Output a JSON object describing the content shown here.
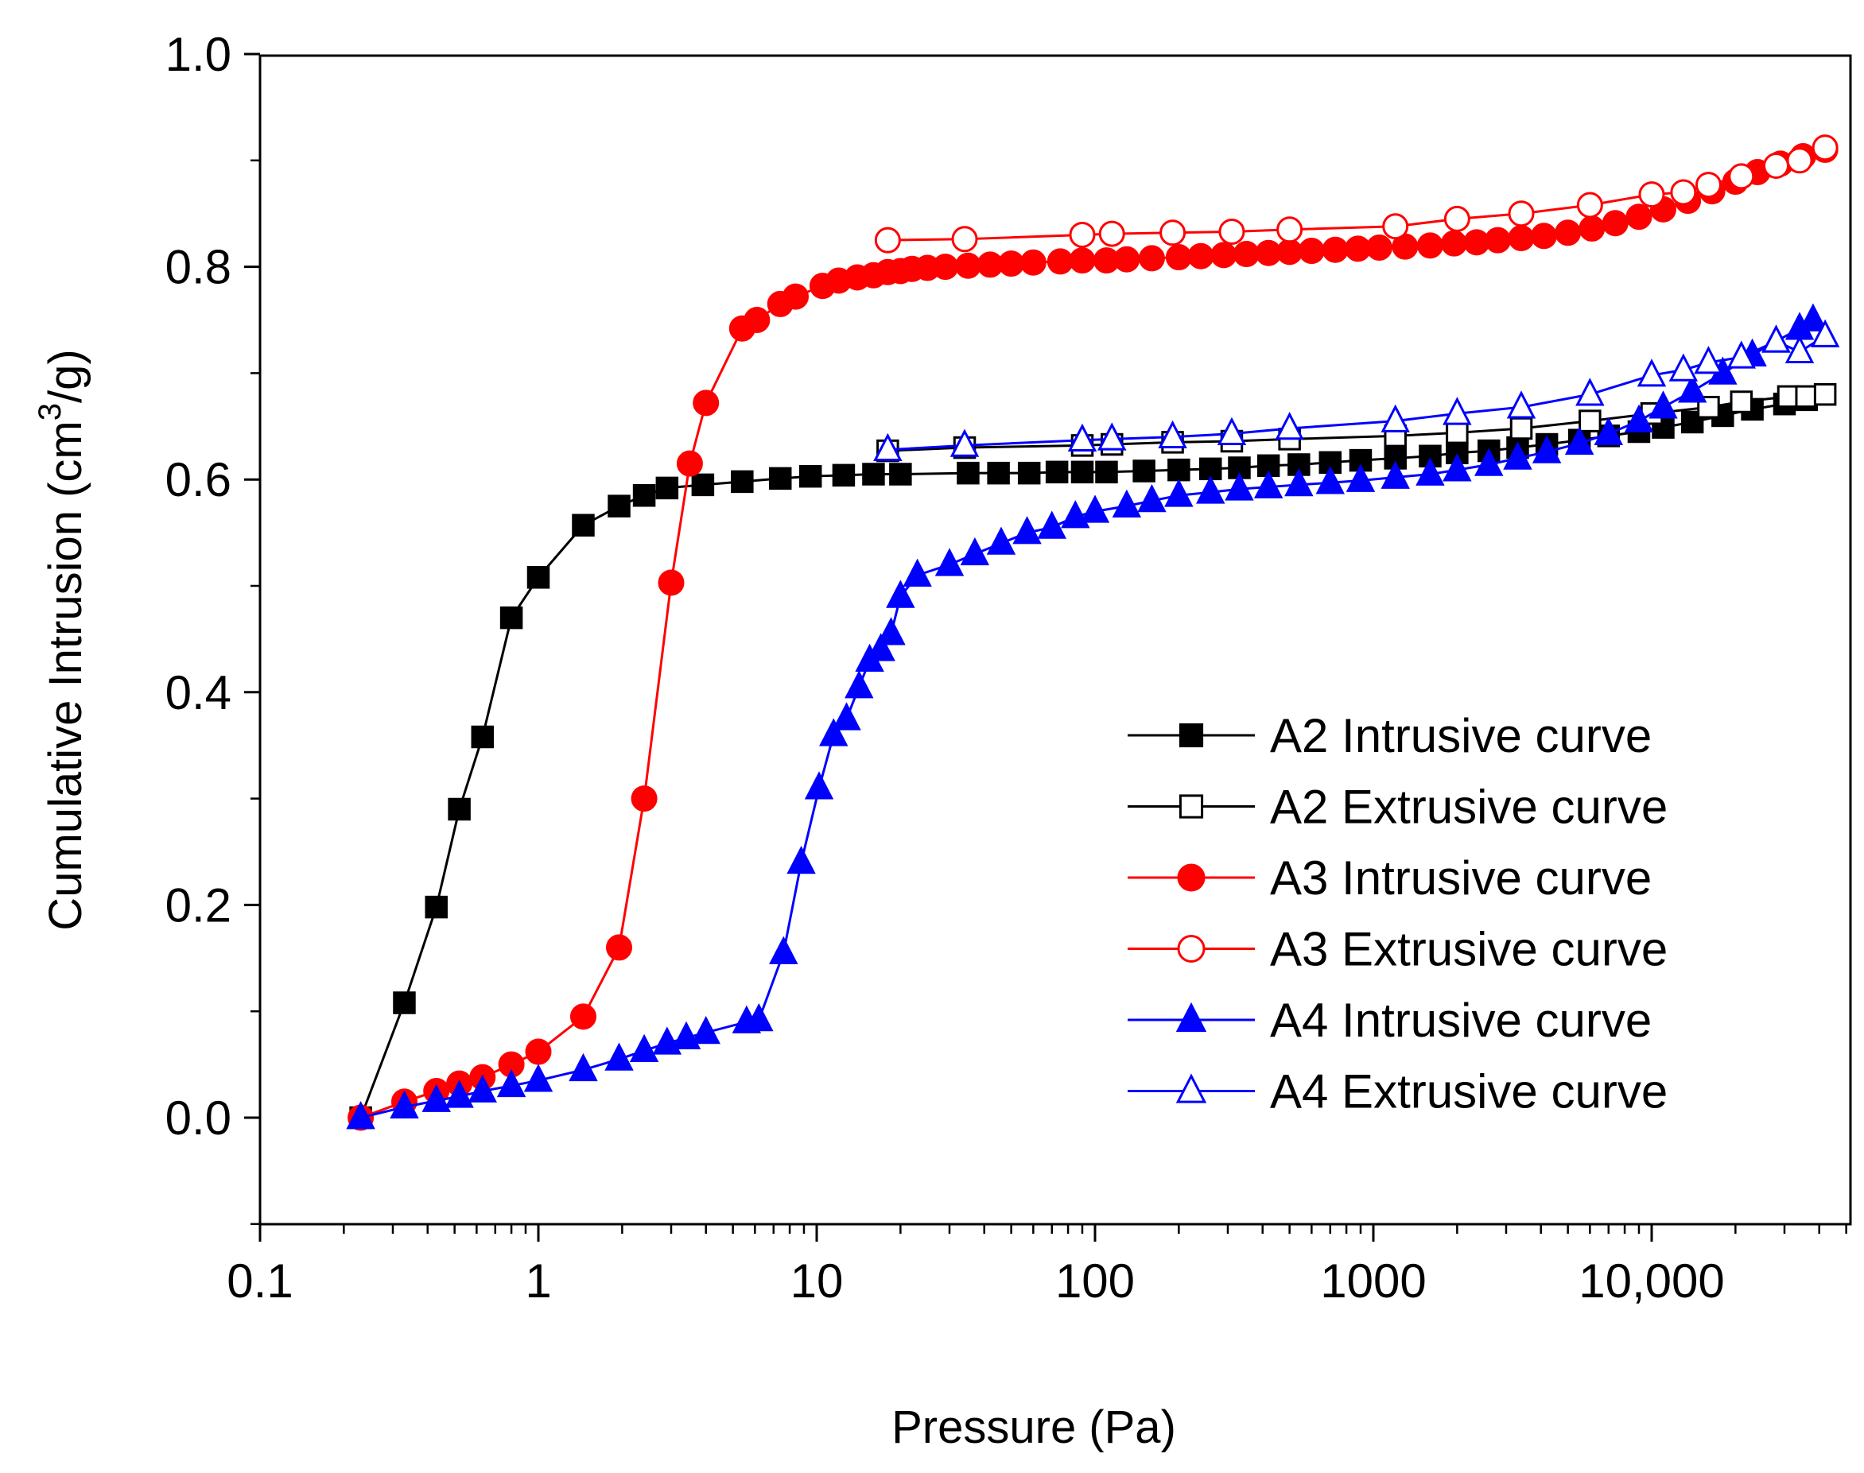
{
  "chart_data": {
    "type": "line",
    "title": "",
    "xlabel": "Pressure (Pa)",
    "ylabel": {
      "prefix": "Cumulative Intrusion (cm",
      "superscript": "3",
      "suffix": "/g)"
    },
    "xscale": "log",
    "xlim": [
      0.1,
      50000
    ],
    "ylim": [
      -0.1,
      1.0
    ],
    "x_ticks": [
      {
        "value": 0.1,
        "label": "0.1"
      },
      {
        "value": 1,
        "label": "1"
      },
      {
        "value": 10,
        "label": "10"
      },
      {
        "value": 100,
        "label": "100"
      },
      {
        "value": 1000,
        "label": "1000"
      },
      {
        "value": 10000,
        "label": "10,000"
      }
    ],
    "y_ticks": [
      {
        "value": 0.0,
        "label": "0.0"
      },
      {
        "value": 0.2,
        "label": "0.2"
      },
      {
        "value": 0.4,
        "label": "0.4"
      },
      {
        "value": 0.6,
        "label": "0.6"
      },
      {
        "value": 0.8,
        "label": "0.8"
      },
      {
        "value": 1.0,
        "label": "1.0"
      }
    ],
    "legend_position": "center-right",
    "colors": {
      "A2": "#000000",
      "A3": "#ff0000",
      "A4": "#0000ff"
    },
    "series": [
      {
        "name": "A2 Intrusive curve",
        "color": "#000000",
        "marker": "square",
        "filled": true,
        "x": [
          0.23,
          0.33,
          0.43,
          0.52,
          0.63,
          0.8,
          1.0,
          1.45,
          1.95,
          2.4,
          2.9,
          3.9,
          5.4,
          7.4,
          9.5,
          12.5,
          16,
          20,
          35,
          45,
          58,
          73,
          90,
          110,
          150,
          200,
          260,
          330,
          420,
          540,
          700,
          900,
          1200,
          1600,
          2000,
          2600,
          3300,
          4200,
          5500,
          7000,
          9000,
          11000,
          14000,
          18000,
          23000,
          30000,
          36000
        ],
        "y": [
          0.0,
          0.108,
          0.198,
          0.29,
          0.358,
          0.47,
          0.508,
          0.557,
          0.575,
          0.585,
          0.592,
          0.595,
          0.598,
          0.601,
          0.603,
          0.604,
          0.605,
          0.605,
          0.606,
          0.606,
          0.606,
          0.607,
          0.607,
          0.607,
          0.608,
          0.609,
          0.61,
          0.611,
          0.613,
          0.614,
          0.616,
          0.618,
          0.62,
          0.622,
          0.625,
          0.627,
          0.63,
          0.633,
          0.637,
          0.641,
          0.645,
          0.649,
          0.654,
          0.66,
          0.666,
          0.671,
          0.675
        ]
      },
      {
        "name": "A2 Extrusive curve",
        "color": "#000000",
        "marker": "square",
        "filled": false,
        "x": [
          18,
          34,
          90,
          115,
          190,
          310,
          500,
          1200,
          2000,
          3400,
          6000,
          10000,
          16000,
          21000,
          31000,
          36000,
          42000
        ],
        "y": [
          0.627,
          0.63,
          0.632,
          0.633,
          0.635,
          0.636,
          0.638,
          0.641,
          0.644,
          0.648,
          0.655,
          0.662,
          0.668,
          0.673,
          0.678,
          0.678,
          0.68
        ]
      },
      {
        "name": "A3 Intrusive curve",
        "color": "#ff0000",
        "marker": "circle",
        "filled": true,
        "x": [
          0.23,
          0.33,
          0.43,
          0.52,
          0.63,
          0.8,
          1.0,
          1.45,
          1.95,
          2.4,
          3.0,
          3.5,
          4.0,
          5.4,
          6.1,
          7.4,
          8.4,
          10.5,
          12,
          14,
          16,
          18,
          20,
          22,
          25,
          29,
          35,
          42,
          50,
          60,
          75,
          90,
          110,
          130,
          160,
          200,
          240,
          290,
          350,
          420,
          500,
          600,
          730,
          880,
          1050,
          1300,
          1600,
          1950,
          2350,
          2800,
          3400,
          4100,
          5000,
          6100,
          7400,
          9000,
          11000,
          13500,
          16500,
          20000,
          24000,
          29000,
          35000,
          42000
        ],
        "y": [
          0.0,
          0.015,
          0.025,
          0.032,
          0.038,
          0.05,
          0.062,
          0.095,
          0.16,
          0.3,
          0.503,
          0.615,
          0.672,
          0.742,
          0.75,
          0.765,
          0.772,
          0.782,
          0.787,
          0.79,
          0.792,
          0.795,
          0.796,
          0.798,
          0.799,
          0.8,
          0.801,
          0.802,
          0.803,
          0.804,
          0.805,
          0.806,
          0.806,
          0.807,
          0.808,
          0.809,
          0.81,
          0.811,
          0.812,
          0.813,
          0.814,
          0.815,
          0.816,
          0.817,
          0.818,
          0.819,
          0.82,
          0.822,
          0.823,
          0.825,
          0.827,
          0.829,
          0.832,
          0.836,
          0.841,
          0.847,
          0.854,
          0.862,
          0.871,
          0.88,
          0.889,
          0.897,
          0.904,
          0.91
        ]
      },
      {
        "name": "A3 Extrusive curve",
        "color": "#ff0000",
        "marker": "circle",
        "filled": false,
        "x": [
          18,
          34,
          90,
          115,
          190,
          310,
          500,
          1200,
          2000,
          3400,
          6000,
          10000,
          13000,
          16000,
          21000,
          28000,
          34000,
          42000
        ],
        "y": [
          0.825,
          0.826,
          0.83,
          0.831,
          0.832,
          0.833,
          0.835,
          0.838,
          0.845,
          0.85,
          0.858,
          0.868,
          0.87,
          0.877,
          0.885,
          0.895,
          0.9,
          0.912
        ]
      },
      {
        "name": "A4 Intrusive curve",
        "color": "#0000ff",
        "marker": "triangle",
        "filled": true,
        "x": [
          0.23,
          0.33,
          0.43,
          0.52,
          0.63,
          0.8,
          1.0,
          1.45,
          1.95,
          2.4,
          2.9,
          3.4,
          4.0,
          5.6,
          6.2,
          7.6,
          8.8,
          10.2,
          11.5,
          12.8,
          14.2,
          15.5,
          17,
          18.5,
          20,
          23,
          30,
          37,
          46,
          57,
          70,
          85,
          100,
          130,
          160,
          200,
          260,
          330,
          420,
          540,
          700,
          900,
          1200,
          1600,
          2000,
          2600,
          3300,
          4200,
          5500,
          7000,
          9000,
          11000,
          14000,
          18000,
          23000,
          28000,
          34000,
          38000
        ],
        "y": [
          0.0,
          0.01,
          0.016,
          0.02,
          0.025,
          0.03,
          0.035,
          0.045,
          0.055,
          0.063,
          0.07,
          0.075,
          0.08,
          0.09,
          0.092,
          0.155,
          0.24,
          0.31,
          0.36,
          0.375,
          0.405,
          0.43,
          0.44,
          0.455,
          0.49,
          0.51,
          0.52,
          0.53,
          0.54,
          0.55,
          0.555,
          0.565,
          0.57,
          0.575,
          0.58,
          0.585,
          0.588,
          0.591,
          0.593,
          0.595,
          0.597,
          0.599,
          0.602,
          0.605,
          0.609,
          0.614,
          0.62,
          0.626,
          0.634,
          0.643,
          0.655,
          0.668,
          0.683,
          0.7,
          0.717,
          0.73,
          0.742,
          0.75
        ]
      },
      {
        "name": "A4 Extrusive curve",
        "color": "#0000ff",
        "marker": "triangle",
        "filled": false,
        "x": [
          18,
          34,
          90,
          115,
          190,
          310,
          500,
          1200,
          2000,
          3400,
          6000,
          10000,
          13000,
          16000,
          21000,
          28000,
          34000,
          42000
        ],
        "y": [
          0.628,
          0.632,
          0.637,
          0.638,
          0.64,
          0.643,
          0.648,
          0.655,
          0.662,
          0.668,
          0.68,
          0.698,
          0.703,
          0.71,
          0.715,
          0.73,
          0.72,
          0.735
        ]
      }
    ]
  }
}
